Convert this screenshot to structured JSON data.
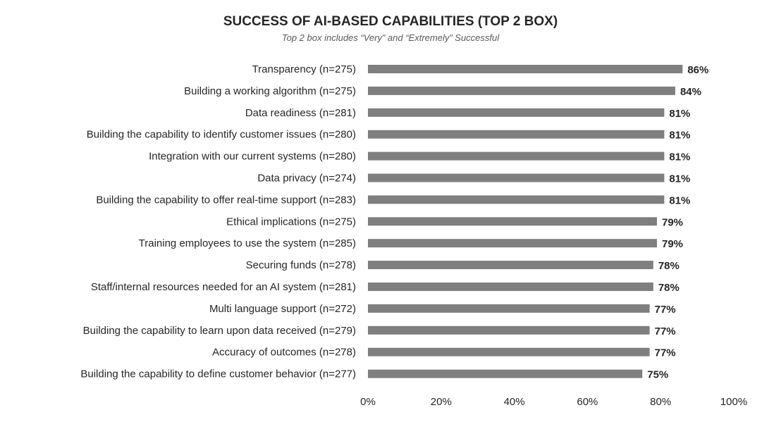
{
  "chart_data": {
    "type": "bar",
    "orientation": "horizontal",
    "title": "SUCCESS OF AI-BASED CAPABILITIES (TOP 2 BOX)",
    "subtitle": "Top 2 box includes “Very” and “Extremely” Successful",
    "xlabel": "",
    "ylabel": "",
    "xlim": [
      0,
      100
    ],
    "value_suffix": "%",
    "grid": false,
    "legend": "none",
    "bar_color": "#7f7f7f",
    "x_ticks": [
      "0%",
      "20%",
      "40%",
      "60%",
      "80%",
      "100%"
    ],
    "x_tick_values": [
      0,
      20,
      40,
      60,
      80,
      100
    ],
    "categories": [
      "Transparency (n=275)",
      "Building a working algorithm (n=275)",
      "Data readiness (n=281)",
      "Building the capability to identify customer issues (n=280)",
      "Integration with our current systems (n=280)",
      "Data privacy (n=274)",
      "Building the capability to offer real-time support (n=283)",
      "Ethical implications (n=275)",
      "Training employees to use the system (n=285)",
      "Securing funds (n=278)",
      "Staff/internal resources needed for an AI system (n=281)",
      "Multi language support (n=272)",
      "Building the capability to learn upon data received (n=279)",
      "Accuracy of outcomes (n=278)",
      "Building the capability to define customer behavior (n=277)"
    ],
    "values": [
      86,
      84,
      81,
      81,
      81,
      81,
      81,
      79,
      79,
      78,
      78,
      77,
      77,
      77,
      75
    ]
  }
}
